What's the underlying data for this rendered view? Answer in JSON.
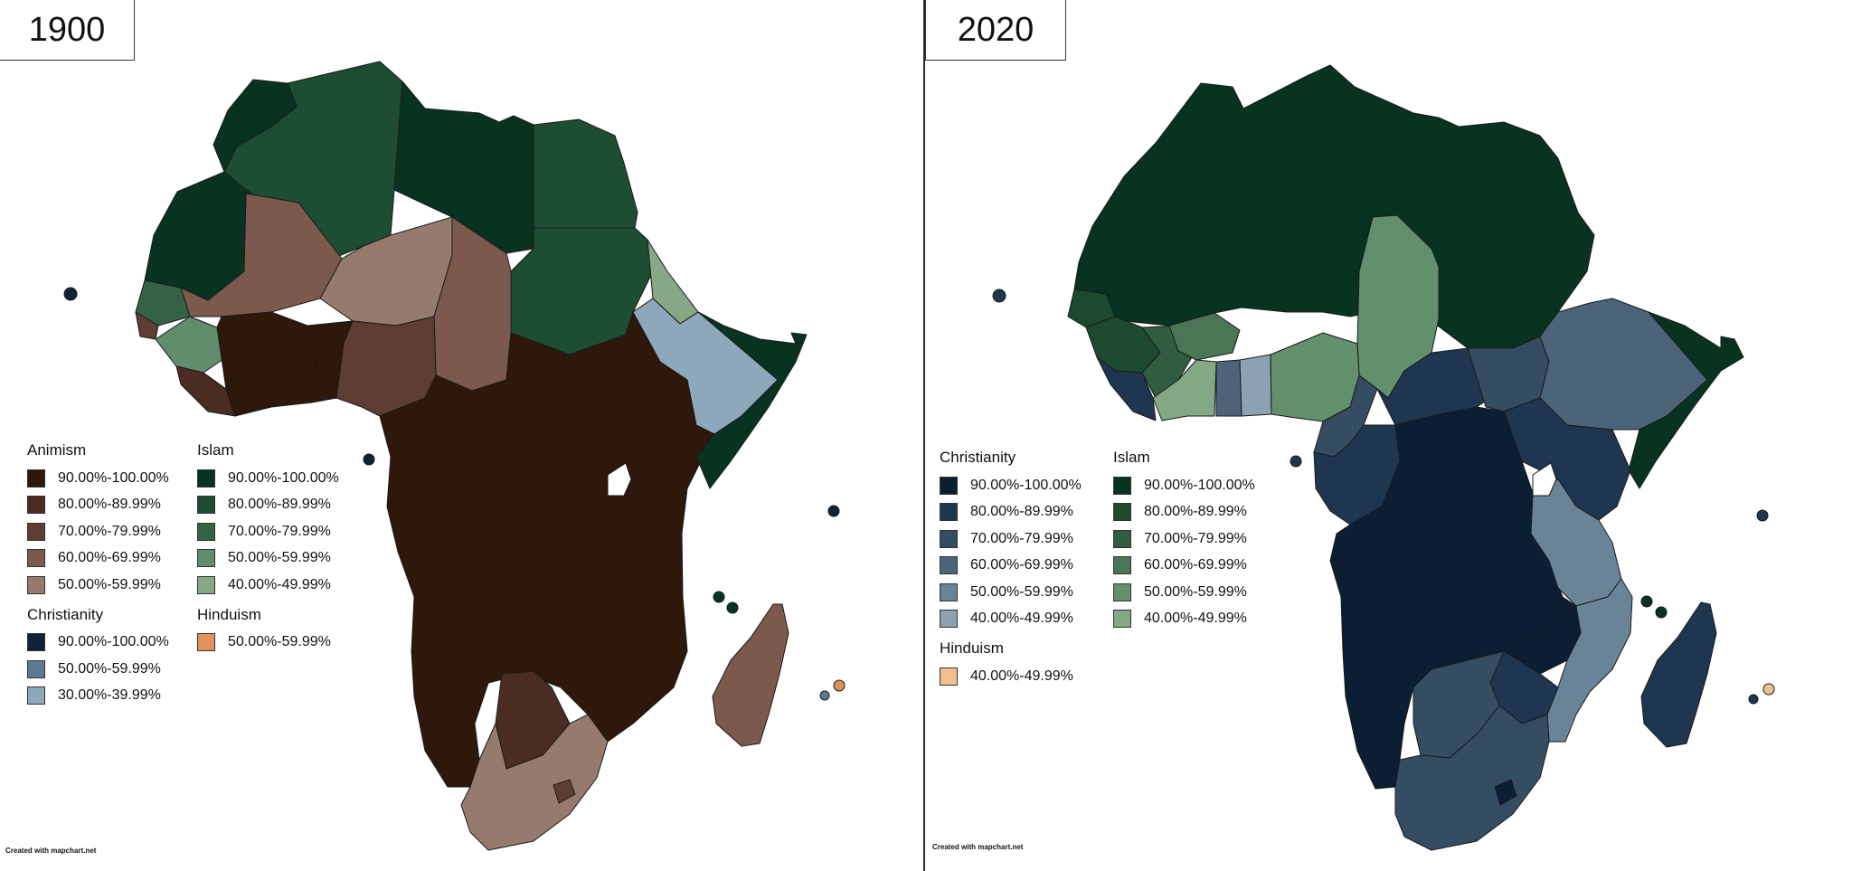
{
  "credit": "Created with mapchart.net",
  "maps": [
    {
      "year": "1900",
      "legend": {
        "col1": [
          {
            "title": "Animism",
            "items": [
              {
                "label": "90.00%-100.00%",
                "color": "#2e170b"
              },
              {
                "label": "80.00%-89.99%",
                "color": "#4a2c22"
              },
              {
                "label": "70.00%-79.99%",
                "color": "#5e3e32"
              },
              {
                "label": "60.00%-69.99%",
                "color": "#7b5a4d"
              },
              {
                "label": "50.00%-59.99%",
                "color": "#967a6e"
              }
            ]
          },
          {
            "title": "Christianity",
            "items": [
              {
                "label": "90.00%-100.00%",
                "color": "#0f2238"
              },
              {
                "label": "50.00%-59.99%",
                "color": "#5d7a92"
              },
              {
                "label": "30.00%-39.99%",
                "color": "#8ea8bb"
              }
            ]
          }
        ],
        "col2": [
          {
            "title": "Islam",
            "items": [
              {
                "label": "90.00%-100.00%",
                "color": "#083320"
              },
              {
                "label": "80.00%-89.99%",
                "color": "#1d4d32"
              },
              {
                "label": "70.00%-79.99%",
                "color": "#336245"
              },
              {
                "label": "50.00%-59.99%",
                "color": "#628d6c"
              },
              {
                "label": "40.00%-49.99%",
                "color": "#86a886"
              }
            ]
          },
          {
            "title": "Hinduism",
            "items": [
              {
                "label": "50.00%-59.99%",
                "color": "#e1925c"
              }
            ]
          }
        ]
      }
    },
    {
      "year": "2020",
      "legend": {
        "col1": [
          {
            "title": "Christianity",
            "items": [
              {
                "label": "90.00%-100.00%",
                "color": "#0c1e33"
              },
              {
                "label": "80.00%-89.99%",
                "color": "#1e3650"
              },
              {
                "label": "70.00%-79.99%",
                "color": "#344d63"
              },
              {
                "label": "60.00%-69.99%",
                "color": "#4c6479"
              },
              {
                "label": "50.00%-59.99%",
                "color": "#6a8497"
              },
              {
                "label": "40.00%-49.99%",
                "color": "#8aa2b2"
              }
            ]
          },
          {
            "title": "Hinduism",
            "items": [
              {
                "label": "40.00%-49.99%",
                "color": "#f0c08e"
              }
            ]
          }
        ],
        "col2": [
          {
            "title": "Islam",
            "items": [
              {
                "label": "90.00%-100.00%",
                "color": "#083320"
              },
              {
                "label": "80.00%-89.99%",
                "color": "#1c4a2f"
              },
              {
                "label": "70.00%-79.99%",
                "color": "#305c40"
              },
              {
                "label": "60.00%-69.99%",
                "color": "#4b7656"
              },
              {
                "label": "50.00%-59.99%",
                "color": "#628f6c"
              },
              {
                "label": "40.00%-49.99%",
                "color": "#82a983"
              }
            ]
          }
        ]
      }
    }
  ]
}
